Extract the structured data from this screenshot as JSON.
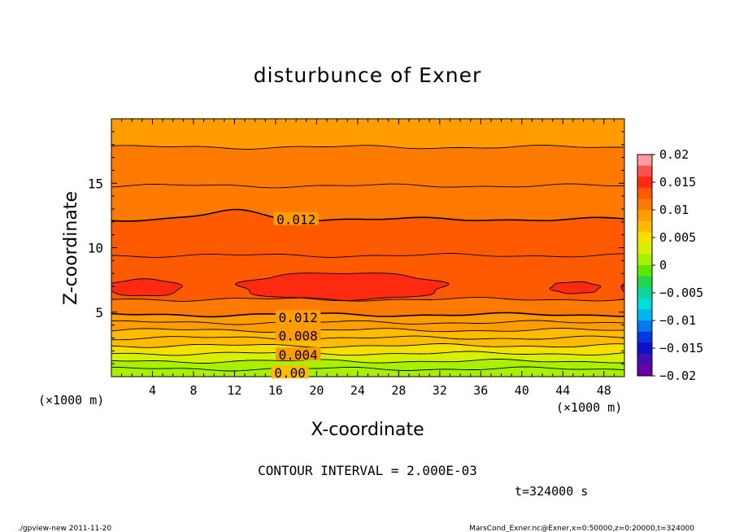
{
  "chart_data": {
    "type": "heatmap",
    "title": "disturbunce of Exner",
    "xlabel": "X-coordinate",
    "ylabel": "Z-coordinate",
    "x_unit": "(×1000 m)",
    "y_unit": "(×1000 m)",
    "xlim": [
      0,
      50
    ],
    "ylim": [
      0,
      20
    ],
    "x_ticks": [
      4,
      8,
      12,
      16,
      20,
      24,
      28,
      32,
      36,
      40,
      44,
      48
    ],
    "y_ticks": [
      5,
      10,
      15
    ],
    "contour_interval_text": "CONTOUR INTERVAL = 2.000E-03",
    "contour_labels": [
      {
        "text": "0.012",
        "x": 18,
        "z": 12.2
      },
      {
        "text": "0.012",
        "x": 18.2,
        "z": 4.6
      },
      {
        "text": "0.008",
        "x": 18.2,
        "z": 3.2
      },
      {
        "text": "0.004",
        "x": 18.2,
        "z": 1.7
      },
      {
        "text": "0.00",
        "x": 17.4,
        "z": 0.3
      }
    ],
    "field": {
      "description_free": true,
      "z_levels": [
        0.0,
        0.6,
        1.2,
        1.8,
        2.4,
        3.0,
        3.6,
        4.2,
        4.8,
        6.0,
        9.4,
        12.2,
        14.8,
        17.8,
        20.0
      ],
      "band_values": [
        0.0005,
        0.002,
        0.004,
        0.0055,
        0.0065,
        0.0075,
        0.0085,
        0.0095,
        0.0105,
        0.0125,
        0.0125,
        0.0115,
        0.0105,
        0.0095
      ]
    },
    "colorbar": {
      "ticks": [
        "0.02",
        "0.015",
        "0.01",
        "0.005",
        "0",
        "−0.005",
        "−0.01",
        "−0.015",
        "−0.02"
      ],
      "colors": [
        "#ff9aa0",
        "#ff5050",
        "#ff2a10",
        "#ff5a00",
        "#ff7a00",
        "#ff9c00",
        "#ffbb00",
        "#f5e000",
        "#d6f000",
        "#a8f000",
        "#5ee600",
        "#1ed84a",
        "#10d69a",
        "#00dcd6",
        "#00b6f0",
        "#0078f0",
        "#0038e6",
        "#1010c8",
        "#4010b0",
        "#6a00a0"
      ]
    }
  },
  "time_text": "t=324000 s",
  "footer": {
    "left": "./gpview-new   2011-11-20",
    "right": "MarsCond_Exner.nc@Exner,x=0:50000,z=0:20000,t=324000"
  }
}
